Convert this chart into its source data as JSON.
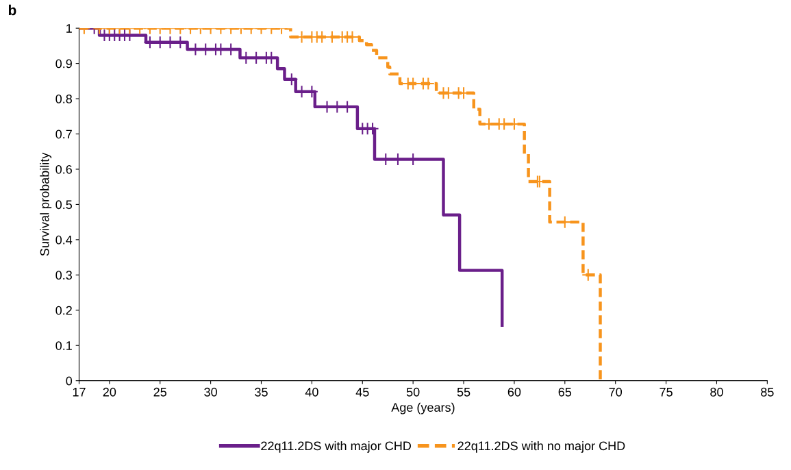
{
  "chart_data": {
    "type": "step",
    "ylabel": "Survival probability",
    "xlabel": "Age (years)",
    "annotations": [
      "b"
    ],
    "xlim": [
      17,
      85
    ],
    "xticks": [
      17,
      20,
      25,
      30,
      35,
      40,
      45,
      50,
      55,
      60,
      65,
      70,
      75,
      80,
      85
    ],
    "ylim": [
      0,
      1.0
    ],
    "yticks": [
      0,
      0.1,
      0.2,
      0.3,
      0.4,
      0.5,
      0.6,
      0.7,
      0.8,
      0.9,
      1
    ],
    "grid": false,
    "legend": "bottom",
    "marker": "none",
    "series": [
      {
        "name": "22q11.2DS with major CHD",
        "color": "#6a1f8a",
        "line_style": "solid",
        "x": [
          17,
          19.0,
          23.6,
          27.7,
          32.9,
          36.6,
          37.3,
          38.4,
          40.3,
          44.5,
          46.2,
          53.0,
          54.6,
          58.8
        ],
        "values": [
          1,
          0.98,
          0.96,
          0.94,
          0.916,
          0.885,
          0.855,
          0.82,
          0.777,
          0.715,
          0.628,
          0.47,
          0.313,
          0.157
        ]
      },
      {
        "name": "22q11.2DS with no major CHD",
        "color": "#f7941d",
        "line_style": "dashed",
        "x": [
          17,
          37.9,
          44.7,
          45.4,
          45.9,
          46.4,
          47.5,
          47.7,
          48.7,
          52.3,
          56.0,
          56.6,
          61.0,
          61.4,
          63.5,
          66.8,
          68.5
        ],
        "values": [
          1,
          0.975,
          0.965,
          0.953,
          0.937,
          0.916,
          0.89,
          0.87,
          0.843,
          0.816,
          0.77,
          0.728,
          0.644,
          0.565,
          0.45,
          0.3,
          0
        ]
      },
      {
        "type": "scatter",
        "marker": "cross",
        "color": "#6a1f8a",
        "x": [
          18.5,
          19.5,
          20,
          20.5,
          21,
          21.5,
          22,
          24,
          25,
          26,
          27,
          28.5,
          29.5,
          30.5,
          31,
          32,
          33.5,
          34.5,
          35.5,
          36,
          38,
          39,
          40,
          41.5,
          42.5,
          43.5,
          45,
          45.5,
          46,
          47.3,
          48.5,
          50
        ],
        "values": [
          1,
          0.98,
          0.98,
          0.98,
          0.98,
          0.98,
          0.98,
          0.96,
          0.96,
          0.96,
          0.96,
          0.94,
          0.94,
          0.94,
          0.94,
          0.94,
          0.916,
          0.916,
          0.916,
          0.916,
          0.855,
          0.82,
          0.82,
          0.777,
          0.777,
          0.777,
          0.715,
          0.715,
          0.715,
          0.628,
          0.628,
          0.628
        ]
      },
      {
        "type": "scatter",
        "marker": "cross",
        "color": "#f7941d",
        "x": [
          17.5,
          19,
          20,
          21,
          22,
          23,
          24,
          25,
          26,
          27,
          28,
          29,
          30,
          31,
          32,
          33,
          34,
          35,
          36,
          37,
          39,
          40,
          40.5,
          41,
          42,
          43,
          43.5,
          44,
          49.5,
          50,
          51,
          51.5,
          53,
          53.5,
          54.5,
          55,
          57.5,
          58.5,
          59,
          60,
          62.3,
          62.5,
          65,
          67.3
        ],
        "values": [
          1,
          1,
          1,
          1,
          1,
          1,
          1,
          1,
          1,
          1,
          1,
          1,
          1,
          1,
          1,
          1,
          1,
          1,
          1,
          1,
          0.975,
          0.975,
          0.975,
          0.975,
          0.975,
          0.975,
          0.975,
          0.975,
          0.843,
          0.843,
          0.843,
          0.843,
          0.816,
          0.816,
          0.816,
          0.816,
          0.728,
          0.728,
          0.728,
          0.728,
          0.565,
          0.565,
          0.45,
          0.3
        ]
      }
    ]
  }
}
